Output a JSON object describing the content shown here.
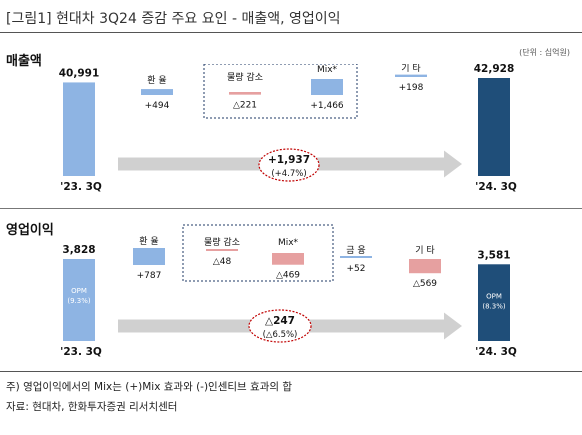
{
  "figure": {
    "title": "[그림1]    현대차 3Q24 증감 주요 요인 - 매출액, 영업이익",
    "unit": "(단위 : 십억원)",
    "note": "주) 영업이익에서의 Mix는 (+)Mix 효과와 (-)인센티브 효과의 합",
    "source": "자료: 현대차, 한화투자증권 리서치센터"
  },
  "colors": {
    "start_bar": "#8eb4e3",
    "end_bar": "#1f4e79",
    "positive": "#8eb4e3",
    "negative": "#e6a0a0",
    "dashed_box": "#1f3864",
    "total_ellipse": "#c00000",
    "arrow": "#d0d0d0"
  },
  "chart_data": [
    {
      "type": "bar",
      "title": "매출액",
      "categories": [
        "'23. 3Q",
        "환 율",
        "물량 감소",
        "Mix*",
        "기 타",
        "'24. 3Q"
      ],
      "values": [
        40991,
        494,
        -221,
        1466,
        198,
        42928
      ],
      "value_labels": [
        "40,991",
        "+494",
        "△221",
        "+1,466",
        "+198",
        "42,928"
      ],
      "grouped_box": [
        "물량 감소",
        "Mix*"
      ],
      "total_change": "+1,937",
      "total_change_pct": "(+4.7%)"
    },
    {
      "type": "bar",
      "title": "영업이익",
      "categories": [
        "'23. 3Q",
        "환 율",
        "물량 감소",
        "Mix*",
        "금 융",
        "기 타",
        "'24. 3Q"
      ],
      "values": [
        3828,
        787,
        -48,
        -469,
        52,
        -569,
        3581
      ],
      "value_labels": [
        "3,828",
        "+787",
        "△48",
        "△469",
        "+52",
        "△569",
        "3,581"
      ],
      "grouped_box": [
        "물량 감소",
        "Mix*"
      ],
      "bar_inner_labels": {
        "start": [
          "OPM",
          "(9.3%)"
        ],
        "end": [
          "OPM",
          "(8.3%)"
        ]
      },
      "total_change": "△247",
      "total_change_pct": "(△6.5%)"
    }
  ]
}
